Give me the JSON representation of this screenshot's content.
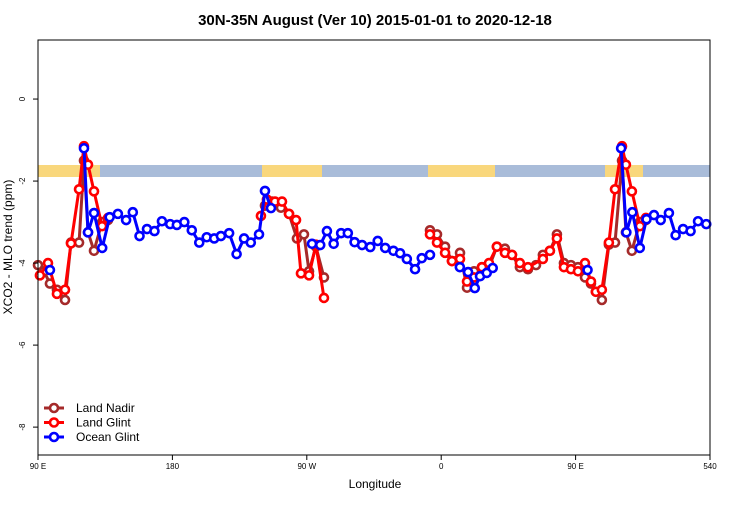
{
  "chart_data": {
    "type": "line",
    "title": "30N-35N August (Ver 10)   2015-01-01 to 2020-12-18",
    "x_label": "Longitude",
    "y_label": "XCO2 - MLO trend (ppm)",
    "xlim": [
      90,
      540
    ],
    "ylim": [
      -8.68,
      1.44
    ],
    "xticks": [
      {
        "value": 90,
        "label": "90 E"
      },
      180,
      {
        "value": 270,
        "label": "90 W"
      },
      {
        "value": 360,
        "label": "0"
      },
      {
        "value": 450,
        "label": "90 E"
      },
      540
    ],
    "yticks": [
      -8,
      -6,
      -4,
      -2,
      0
    ],
    "legend": "bottom-left",
    "series": [
      {
        "name": "Land Nadir",
        "color": "#a52a2a",
        "x": [
          90,
          94,
          98,
          102.7,
          108.1,
          112.1,
          117.5,
          120.8,
          123.5,
          127.5,
          132.9,
          136.9,
          242,
          246.7,
          252.7,
          258.1,
          263.4,
          268.1,
          271.5,
          276.1,
          281.5,
          352.5,
          357.2,
          362.6,
          367.2,
          372.6,
          377.3,
          382,
          387.3,
          392,
          397.3,
          402.7,
          407.4,
          412.7,
          418.1,
          423.5,
          428.1,
          432.8,
          437.5,
          442.2,
          446.9,
          451.6,
          456.3,
          460.3,
          463.6,
          467.6,
          472.3,
          476.4,
          481.1,
          483.7,
          487.7,
          493.1,
          497.1
        ],
        "values": [
          -4.05,
          -4.2,
          -4.5,
          -4.65,
          -4.9,
          -3.5,
          -3.5,
          -1.5,
          -3.25,
          -3.7,
          -3.0,
          -2.95,
          -2.6,
          -2.5,
          -2.65,
          -2.8,
          -3.4,
          -3.3,
          -4.2,
          -3.6,
          -4.35,
          -3.2,
          -3.3,
          -3.6,
          -3.95,
          -3.75,
          -4.6,
          -4.2,
          -4.1,
          -4.1,
          -3.6,
          -3.65,
          -3.8,
          -4.1,
          -4.15,
          -4.05,
          -3.8,
          -3.7,
          -3.3,
          -4.0,
          -4.05,
          -4.1,
          -4.35,
          -4.5,
          -4.7,
          -4.9,
          -3.55,
          -3.5,
          -1.5,
          -3.25,
          -3.7,
          -3.0,
          -2.95
        ]
      },
      {
        "name": "Land Glint",
        "color": "#ff0000",
        "x": [
          91.3,
          96.7,
          102.7,
          108.1,
          112.1,
          117.5,
          120.8,
          123.5,
          127.5,
          132.9,
          136.9,
          239.3,
          243.3,
          248.7,
          253.4,
          258.1,
          262.8,
          266.1,
          271.5,
          276.1,
          281.5,
          352.5,
          357.2,
          362.6,
          367.2,
          372.6,
          377.3,
          382,
          387.3,
          392,
          397.3,
          402.7,
          407.4,
          412.7,
          418.1,
          428.1,
          432.8,
          437.5,
          442.2,
          446.9,
          451.6,
          456.3,
          460.3,
          463.6,
          467.6,
          472.3,
          476.4,
          481.1,
          483.7,
          487.7,
          493.1,
          497.1
        ],
        "values": [
          -4.3,
          -4.0,
          -4.75,
          -4.65,
          -3.52,
          -2.2,
          -1.15,
          -1.6,
          -2.25,
          -3.1,
          -2.9,
          -2.85,
          -2.45,
          -2.5,
          -2.5,
          -2.8,
          -2.95,
          -4.25,
          -4.3,
          -3.55,
          -4.85,
          -3.3,
          -3.5,
          -3.75,
          -3.95,
          -3.9,
          -4.45,
          -4.35,
          -4.1,
          -4.0,
          -3.6,
          -3.75,
          -3.8,
          -4.0,
          -4.1,
          -3.9,
          -3.7,
          -3.4,
          -4.1,
          -4.15,
          -4.2,
          -4.0,
          -4.45,
          -4.7,
          -4.65,
          -3.5,
          -2.2,
          -1.15,
          -1.6,
          -2.25,
          -3.1,
          -2.9
        ]
      },
      {
        "name": "Ocean Glint",
        "color": "#0000ff",
        "x": [
          98,
          120.8,
          123.5,
          127.5,
          133,
          138,
          143.5,
          149,
          153.5,
          158,
          163,
          168,
          173,
          178.5,
          183,
          188,
          193,
          198,
          203,
          208,
          212.5,
          218,
          223,
          228,
          232.5,
          238,
          242,
          246,
          273.5,
          279,
          283.5,
          288,
          293,
          297.5,
          302,
          307,
          312.5,
          317.5,
          322.5,
          328,
          332.5,
          337,
          342.5,
          347,
          352.5,
          372.5,
          378,
          382.5,
          386,
          390.5,
          394.5,
          458,
          480.5,
          484,
          488,
          493,
          497.5,
          502.5,
          507,
          512.5,
          517,
          522,
          527,
          532,
          537.5
        ],
        "values": [
          -4.17,
          -1.2,
          -3.25,
          -2.78,
          -3.63,
          -2.88,
          -2.8,
          -2.95,
          -2.76,
          -3.34,
          -3.17,
          -3.22,
          -2.98,
          -3.05,
          -3.07,
          -3.0,
          -3.2,
          -3.5,
          -3.37,
          -3.4,
          -3.34,
          -3.27,
          -3.78,
          -3.4,
          -3.5,
          -3.3,
          -2.24,
          -2.66,
          -3.53,
          -3.56,
          -3.22,
          -3.53,
          -3.27,
          -3.27,
          -3.49,
          -3.56,
          -3.61,
          -3.46,
          -3.63,
          -3.7,
          -3.76,
          -3.9,
          -4.15,
          -3.88,
          -3.8,
          -4.1,
          -4.22,
          -4.61,
          -4.32,
          -4.24,
          -4.12,
          -4.17,
          -1.2,
          -3.25,
          -2.76,
          -3.63,
          -2.93,
          -2.83,
          -2.95,
          -2.78,
          -3.32,
          -3.17,
          -3.22,
          -2.98,
          -3.05
        ]
      }
    ]
  }
}
